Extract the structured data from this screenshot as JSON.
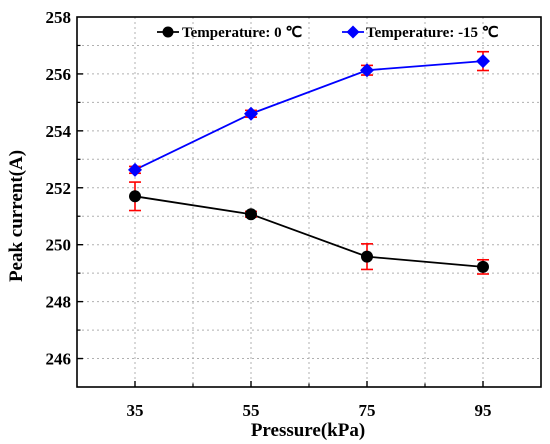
{
  "chart_data": {
    "type": "line",
    "xlabel": "Pressure(kPa)",
    "ylabel": "Peak current(A)",
    "x": [
      35,
      55,
      75,
      95
    ],
    "x_tick_labels": [
      "35",
      "55",
      "75",
      "95"
    ],
    "xlim": [
      25,
      105
    ],
    "ylim": [
      245,
      258
    ],
    "y_ticks": [
      246,
      248,
      250,
      252,
      254,
      256,
      258
    ],
    "y_tick_labels": [
      "246",
      "248",
      "250",
      "252",
      "254",
      "256",
      "258"
    ],
    "grid": true,
    "legend_position": "top",
    "series": [
      {
        "name": "Temperature: 0 ℃",
        "color": "#000000",
        "marker": "circle",
        "values": [
          251.7,
          251.07,
          249.58,
          249.22
        ],
        "error": [
          0.5,
          0.1,
          0.45,
          0.25
        ]
      },
      {
        "name": "Temperature: -15 ℃",
        "color": "#0000ff",
        "marker": "diamond",
        "values": [
          252.63,
          254.6,
          256.13,
          256.45
        ],
        "error": [
          0.12,
          0.12,
          0.17,
          0.33
        ]
      }
    ],
    "error_bar_color": "#ff0000"
  }
}
